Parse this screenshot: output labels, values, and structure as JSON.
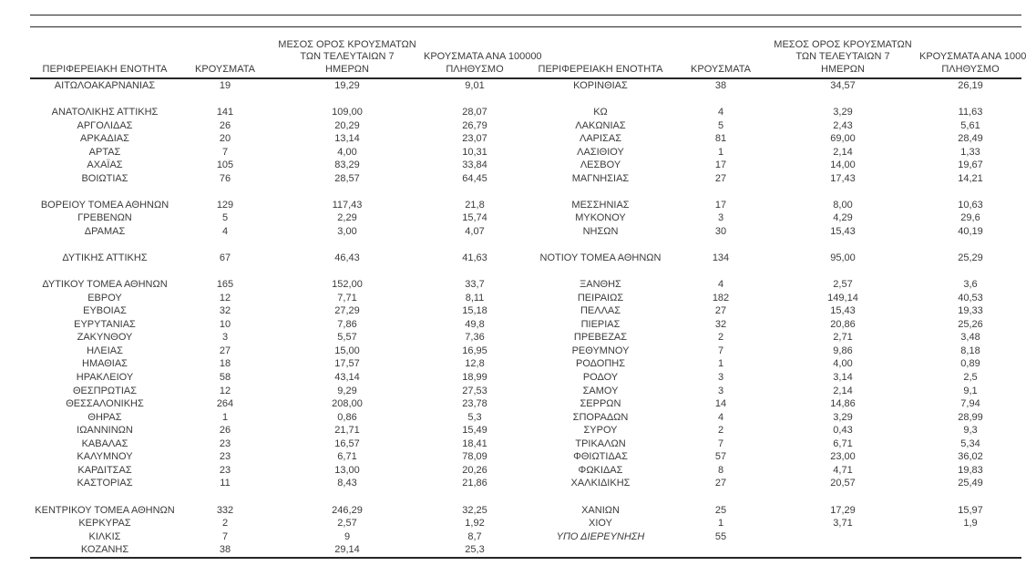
{
  "document": {
    "language": "el",
    "text_color": "#3b3b3b",
    "rule_color": "#262626",
    "background_color": "#ffffff"
  },
  "table": {
    "header": {
      "region": "ΠΕΡΙΦΕΡΕΙΑΚΗ ΕΝΟΤΗΤΑ",
      "cases": "ΚΡΟΥΣΜΑΤΑ",
      "avg7_line1": "ΜΕΣΟΣ ΟΡΟΣ ΚΡΟΥΣΜΑΤΩΝ",
      "avg7_line2": "ΤΩΝ ΤΕΛΕΥΤΑΙΩΝ 7",
      "avg7_line3": "ΗΜΕΡΩΝ",
      "per100k_line1": "ΚΡΟΥΣΜΑΤΑ ΑΝΑ 100000",
      "per100k_line2": "ΠΛΗΘΥΣΜΟ"
    },
    "rows": [
      {
        "cells": [
          "ΑΙΤΩΛΟΑΚΑΡΝΑΝΙΑΣ",
          "19",
          "19,29",
          "9,01",
          "ΚΟΡΙΝΘΙΑΣ",
          "38",
          "34,57",
          "26,19"
        ]
      },
      {
        "cells": [
          "",
          "",
          "",
          "",
          "",
          "",
          "",
          ""
        ]
      },
      {
        "cells": [
          "ΑΝΑΤΟΛΙΚΗΣ ΑΤΤΙΚΗΣ",
          "141",
          "109,00",
          "28,07",
          "ΚΩ",
          "4",
          "3,29",
          "11,63"
        ]
      },
      {
        "cells": [
          "ΑΡΓΟΛΙΔΑΣ",
          "26",
          "20,29",
          "26,79",
          "ΛΑΚΩΝΙΑΣ",
          "5",
          "2,43",
          "5,61"
        ]
      },
      {
        "cells": [
          "ΑΡΚΑΔΙΑΣ",
          "20",
          "13,14",
          "23,07",
          "ΛΑΡΙΣΑΣ",
          "81",
          "69,00",
          "28,49"
        ]
      },
      {
        "cells": [
          "ΑΡΤΑΣ",
          "7",
          "4,00",
          "10,31",
          "ΛΑΣΙΘΙΟΥ",
          "1",
          "2,14",
          "1,33"
        ]
      },
      {
        "cells": [
          "ΑΧΑΪΑΣ",
          "105",
          "83,29",
          "33,84",
          "ΛΕΣΒΟΥ",
          "17",
          "14,00",
          "19,67"
        ]
      },
      {
        "cells": [
          "ΒΟΙΩΤΙΑΣ",
          "76",
          "28,57",
          "64,45",
          "ΜΑΓΝΗΣΙΑΣ",
          "27",
          "17,43",
          "14,21"
        ]
      },
      {
        "cells": [
          "",
          "",
          "",
          "",
          "",
          "",
          "",
          ""
        ]
      },
      {
        "cells": [
          "ΒΟΡΕΙΟΥ ΤΟΜΕΑ ΑΘΗΝΩΝ",
          "129",
          "117,43",
          "21,8",
          "ΜΕΣΣΗΝΙΑΣ",
          "17",
          "8,00",
          "10,63"
        ]
      },
      {
        "cells": [
          "ΓΡΕΒΕΝΩΝ",
          "5",
          "2,29",
          "15,74",
          "ΜΥΚΟΝΟΥ",
          "3",
          "4,29",
          "29,6"
        ]
      },
      {
        "cells": [
          "ΔΡΑΜΑΣ",
          "4",
          "3,00",
          "4,07",
          "ΝΗΣΩΝ",
          "30",
          "15,43",
          "40,19"
        ]
      },
      {
        "cells": [
          "",
          "",
          "",
          "",
          "",
          "",
          "",
          ""
        ]
      },
      {
        "cells": [
          "ΔΥΤΙΚΗΣ ΑΤΤΙΚΗΣ",
          "67",
          "46,43",
          "41,63",
          "ΝΟΤΙΟΥ ΤΟΜΕΑ ΑΘΗΝΩΝ",
          "134",
          "95,00",
          "25,29"
        ]
      },
      {
        "cells": [
          "",
          "",
          "",
          "",
          "",
          "",
          "",
          ""
        ]
      },
      {
        "cells": [
          "ΔΥΤΙΚΟΥ ΤΟΜΕΑ ΑΘΗΝΩΝ",
          "165",
          "152,00",
          "33,7",
          "ΞΑΝΘΗΣ",
          "4",
          "2,57",
          "3,6"
        ]
      },
      {
        "cells": [
          "ΕΒΡΟΥ",
          "12",
          "7,71",
          "8,11",
          "ΠΕΙΡΑΙΩΣ",
          "182",
          "149,14",
          "40,53"
        ]
      },
      {
        "cells": [
          "ΕΥΒΟΙΑΣ",
          "32",
          "27,29",
          "15,18",
          "ΠΕΛΛΑΣ",
          "27",
          "15,43",
          "19,33"
        ]
      },
      {
        "cells": [
          "ΕΥΡΥΤΑΝΙΑΣ",
          "10",
          "7,86",
          "49,8",
          "ΠΙΕΡΙΑΣ",
          "32",
          "20,86",
          "25,26"
        ]
      },
      {
        "cells": [
          "ΖΑΚΥΝΘΟΥ",
          "3",
          "5,57",
          "7,36",
          "ΠΡΕΒΕΖΑΣ",
          "2",
          "2,71",
          "3,48"
        ]
      },
      {
        "cells": [
          "ΗΛΕΙΑΣ",
          "27",
          "15,00",
          "16,95",
          "ΡΕΘΥΜΝΟΥ",
          "7",
          "9,86",
          "8,18"
        ]
      },
      {
        "cells": [
          "ΗΜΑΘΙΑΣ",
          "18",
          "17,57",
          "12,8",
          "ΡΟΔΟΠΗΣ",
          "1",
          "4,00",
          "0,89"
        ]
      },
      {
        "cells": [
          "ΗΡΑΚΛΕΙΟΥ",
          "58",
          "43,14",
          "18,99",
          "ΡΟΔΟΥ",
          "3",
          "3,14",
          "2,5"
        ]
      },
      {
        "cells": [
          "ΘΕΣΠΡΩΤΙΑΣ",
          "12",
          "9,29",
          "27,53",
          "ΣΑΜΟΥ",
          "3",
          "2,14",
          "9,1"
        ]
      },
      {
        "cells": [
          "ΘΕΣΣΑΛΟΝΙΚΗΣ",
          "264",
          "208,00",
          "23,78",
          "ΣΕΡΡΩΝ",
          "14",
          "14,86",
          "7,94"
        ]
      },
      {
        "cells": [
          "ΘΗΡΑΣ",
          "1",
          "0,86",
          "5,3",
          "ΣΠΟΡΑΔΩΝ",
          "4",
          "3,29",
          "28,99"
        ]
      },
      {
        "cells": [
          "ΙΩΑΝΝΙΝΩΝ",
          "26",
          "21,71",
          "15,49",
          "ΣΥΡΟΥ",
          "2",
          "0,43",
          "9,3"
        ]
      },
      {
        "cells": [
          "ΚΑΒΑΛΑΣ",
          "23",
          "16,57",
          "18,41",
          "ΤΡΙΚΑΛΩΝ",
          "7",
          "6,71",
          "5,34"
        ]
      },
      {
        "cells": [
          "ΚΑΛΥΜΝΟΥ",
          "23",
          "6,71",
          "78,09",
          "ΦΘΙΩΤΙΔΑΣ",
          "57",
          "23,00",
          "36,02"
        ]
      },
      {
        "cells": [
          "ΚΑΡΔΙΤΣΑΣ",
          "23",
          "13,00",
          "20,26",
          "ΦΩΚΙΔΑΣ",
          "8",
          "4,71",
          "19,83"
        ]
      },
      {
        "cells": [
          "ΚΑΣΤΟΡΙΑΣ",
          "11",
          "8,43",
          "21,86",
          "ΧΑΛΚΙΔΙΚΗΣ",
          "27",
          "20,57",
          "25,49"
        ]
      },
      {
        "cells": [
          "",
          "",
          "",
          "",
          "",
          "",
          "",
          ""
        ]
      },
      {
        "cells": [
          "ΚΕΝΤΡΙΚΟΥ ΤΟΜΕΑ ΑΘΗΝΩΝ",
          "332",
          "246,29",
          "32,25",
          "ΧΑΝΙΩΝ",
          "25",
          "17,29",
          "15,97"
        ]
      },
      {
        "cells": [
          "ΚΕΡΚΥΡΑΣ",
          "2",
          "2,57",
          "1,92",
          "ΧΙΟΥ",
          "1",
          "3,71",
          "1,9"
        ]
      },
      {
        "cells": [
          "ΚΙΛΚΙΣ",
          "7",
          "9",
          "8,7",
          "ΥΠΟ ΔΙΕΡΕΥΝΗΣΗ",
          "55",
          "",
          ""
        ],
        "italic": [
          4
        ]
      },
      {
        "cells": [
          "ΚΟΖΑΝΗΣ",
          "38",
          "29,14",
          "25,3",
          "",
          "",
          "",
          ""
        ]
      }
    ]
  }
}
